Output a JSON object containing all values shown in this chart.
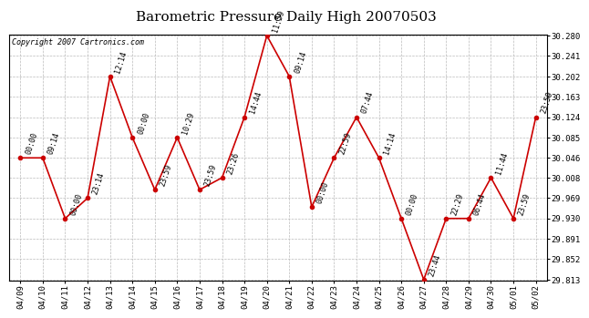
{
  "title": "Barometric Pressure Daily High 20070503",
  "copyright": "Copyright 2007 Cartronics.com",
  "dates": [
    "04/09",
    "04/10",
    "04/11",
    "04/12",
    "04/13",
    "04/14",
    "04/15",
    "04/16",
    "04/17",
    "04/18",
    "04/19",
    "04/20",
    "04/21",
    "04/22",
    "04/23",
    "04/24",
    "04/25",
    "04/26",
    "04/27",
    "04/28",
    "04/29",
    "04/30",
    "05/01",
    "05/02"
  ],
  "values": [
    30.046,
    30.046,
    29.93,
    29.969,
    30.202,
    30.085,
    29.985,
    30.085,
    29.985,
    30.008,
    30.124,
    30.28,
    30.202,
    29.952,
    30.046,
    30.124,
    30.046,
    29.93,
    29.813,
    29.93,
    29.93,
    30.008,
    29.93,
    30.124
  ],
  "times": [
    "00:00",
    "09:14",
    "00:00",
    "23:14",
    "12:14",
    "00:00",
    "23:59",
    "10:29",
    "23:59",
    "23:26",
    "14:44",
    "11:59",
    "09:14",
    "00:00",
    "22:59",
    "07:44",
    "14:14",
    "00:00",
    "23:44",
    "22:29",
    "06:44",
    "11:44",
    "23:59",
    "23:59"
  ],
  "ylim_min": 29.813,
  "ylim_max": 30.28,
  "yticks": [
    29.813,
    29.852,
    29.891,
    29.93,
    29.969,
    30.008,
    30.046,
    30.085,
    30.124,
    30.163,
    30.202,
    30.241,
    30.28
  ],
  "line_color": "#cc0000",
  "marker_color": "#cc0000",
  "marker_size": 3,
  "background_color": "#ffffff",
  "grid_color": "#bbbbbb",
  "title_fontsize": 11,
  "label_fontsize": 6.5,
  "annotation_fontsize": 6,
  "copyright_fontsize": 6,
  "line_width": 1.2,
  "annotation_rotation": 72
}
